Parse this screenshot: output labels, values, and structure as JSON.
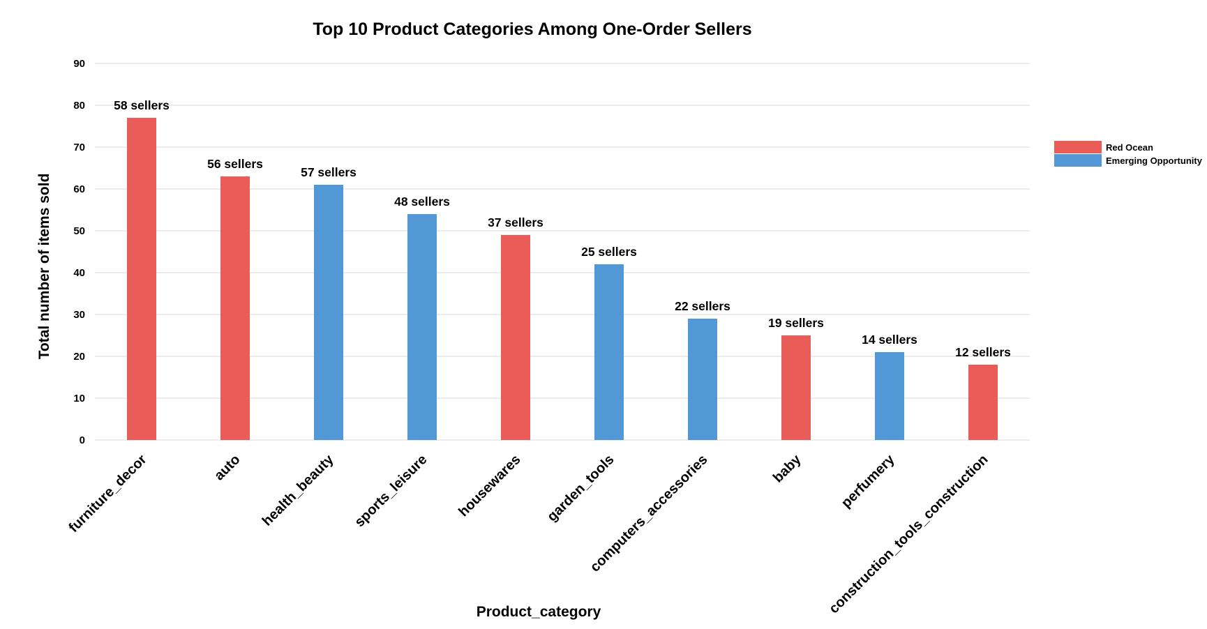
{
  "chart_data": {
    "type": "bar",
    "title": "Top 10 Product Categories Among One-Order Sellers",
    "xlabel": "Product_category",
    "ylabel": "Total number of items sold",
    "ylim": [
      0,
      90
    ],
    "yticks": [
      0,
      10,
      20,
      30,
      40,
      50,
      60,
      70,
      80,
      90
    ],
    "grid": true,
    "legend_position": "right",
    "legend": [
      {
        "name": "Red Ocean",
        "color": "#E95C58"
      },
      {
        "name": "Emerging Opportunity",
        "color": "#5297D6"
      }
    ],
    "categories": [
      "furniture_decor",
      "auto",
      "health_beauty",
      "sports_leisure",
      "housewares",
      "garden_tools",
      "computers_accessories",
      "baby",
      "perfumery",
      "construction_tools_construction"
    ],
    "values": [
      77,
      63,
      61,
      54,
      49,
      42,
      29,
      25,
      21,
      18
    ],
    "groups": [
      "Red Ocean",
      "Red Ocean",
      "Emerging Opportunity",
      "Emerging Opportunity",
      "Red Ocean",
      "Emerging Opportunity",
      "Emerging Opportunity",
      "Red Ocean",
      "Emerging Opportunity",
      "Red Ocean"
    ],
    "data_labels": [
      "58 sellers",
      "56 sellers",
      "57 sellers",
      "48 sellers",
      "37 sellers",
      "25 sellers",
      "22 sellers",
      "19 sellers",
      "14 sellers",
      "12 sellers"
    ]
  }
}
